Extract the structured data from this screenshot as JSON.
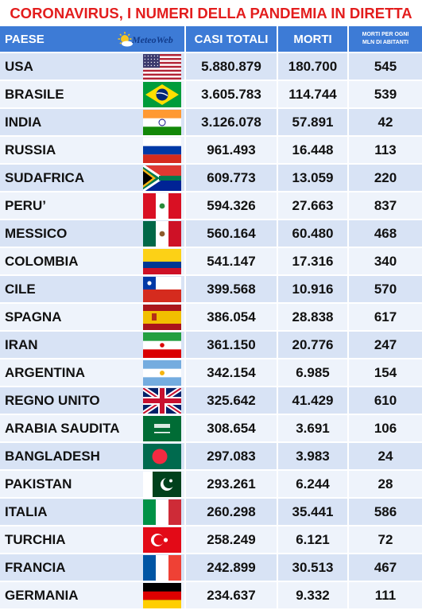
{
  "title": "CORONAVIRUS, I NUMERI DELLA PANDEMIA IN DIRETTA",
  "header": {
    "paese": "PAESE",
    "logo_text": "MeteoWeb",
    "casi_totali": "CASI TOTALI",
    "morti": "MORTI",
    "morti_per_mln_line1": "MORTI PER OGNI",
    "morti_per_mln_line2": "MLN DI ABITANTI"
  },
  "rows": [
    {
      "country": "USA",
      "flag": "usa-flag-icon",
      "cases": "5.880.879",
      "deaths": "180.700",
      "per_mln": "545"
    },
    {
      "country": "BRASILE",
      "flag": "brazil-flag-icon",
      "cases": "3.605.783",
      "deaths": "114.744",
      "per_mln": "539"
    },
    {
      "country": "INDIA",
      "flag": "india-flag-icon",
      "cases": "3.126.078",
      "deaths": "57.891",
      "per_mln": "42"
    },
    {
      "country": "RUSSIA",
      "flag": "russia-flag-icon",
      "cases": "961.493",
      "deaths": "16.448",
      "per_mln": "113"
    },
    {
      "country": "SUDAFRICA",
      "flag": "south-africa-flag-icon",
      "cases": "609.773",
      "deaths": "13.059",
      "per_mln": "220"
    },
    {
      "country": "PERU’",
      "flag": "peru-flag-icon",
      "cases": "594.326",
      "deaths": "27.663",
      "per_mln": "837"
    },
    {
      "country": "MESSICO",
      "flag": "mexico-flag-icon",
      "cases": "560.164",
      "deaths": "60.480",
      "per_mln": "468"
    },
    {
      "country": "COLOMBIA",
      "flag": "colombia-flag-icon",
      "cases": "541.147",
      "deaths": "17.316",
      "per_mln": "340"
    },
    {
      "country": "CILE",
      "flag": "chile-flag-icon",
      "cases": "399.568",
      "deaths": "10.916",
      "per_mln": "570"
    },
    {
      "country": "SPAGNA",
      "flag": "spain-flag-icon",
      "cases": "386.054",
      "deaths": "28.838",
      "per_mln": "617"
    },
    {
      "country": "IRAN",
      "flag": "iran-flag-icon",
      "cases": "361.150",
      "deaths": "20.776",
      "per_mln": "247"
    },
    {
      "country": "ARGENTINA",
      "flag": "argentina-flag-icon",
      "cases": "342.154",
      "deaths": "6.985",
      "per_mln": "154"
    },
    {
      "country": "REGNO UNITO",
      "flag": "uk-flag-icon",
      "cases": "325.642",
      "deaths": "41.429",
      "per_mln": "610"
    },
    {
      "country": "ARABIA SAUDITA",
      "flag": "saudi-arabia-flag-icon",
      "cases": "308.654",
      "deaths": "3.691",
      "per_mln": "106"
    },
    {
      "country": "BANGLADESH",
      "flag": "bangladesh-flag-icon",
      "cases": "297.083",
      "deaths": "3.983",
      "per_mln": "24"
    },
    {
      "country": "PAKISTAN",
      "flag": "pakistan-flag-icon",
      "cases": "293.261",
      "deaths": "6.244",
      "per_mln": "28"
    },
    {
      "country": "ITALIA",
      "flag": "italy-flag-icon",
      "cases": "260.298",
      "deaths": "35.441",
      "per_mln": "586"
    },
    {
      "country": "TURCHIA",
      "flag": "turkey-flag-icon",
      "cases": "258.249",
      "deaths": "6.121",
      "per_mln": "72"
    },
    {
      "country": "FRANCIA",
      "flag": "france-flag-icon",
      "cases": "242.899",
      "deaths": "30.513",
      "per_mln": "467"
    },
    {
      "country": "GERMANIA",
      "flag": "germany-flag-icon",
      "cases": "234.637",
      "deaths": "9.332",
      "per_mln": "111"
    }
  ]
}
